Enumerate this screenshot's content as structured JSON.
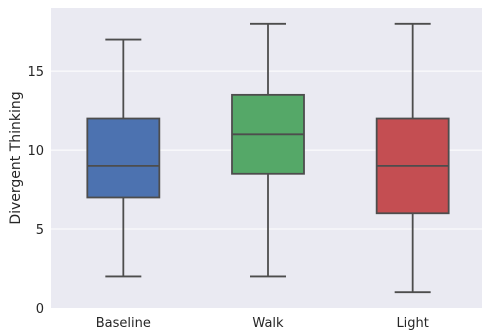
{
  "chart_data": {
    "type": "box",
    "title": "",
    "xlabel": "",
    "ylabel": "Divergent Thinking",
    "ylim": [
      0,
      19
    ],
    "yticks": [
      0,
      5,
      10,
      15
    ],
    "grid": true,
    "categories": [
      "Baseline",
      "Walk",
      "Light"
    ],
    "boxes": [
      {
        "category": "Baseline",
        "min": 2,
        "q1": 7,
        "median": 9,
        "q3": 12,
        "max": 17,
        "color": "#4C72B0"
      },
      {
        "category": "Walk",
        "min": 2,
        "q1": 8.5,
        "median": 11,
        "q3": 13.5,
        "max": 18,
        "color": "#55A868"
      },
      {
        "category": "Light",
        "min": 1,
        "q1": 6,
        "median": 9,
        "q3": 12,
        "max": 18,
        "color": "#C44E52"
      }
    ]
  }
}
